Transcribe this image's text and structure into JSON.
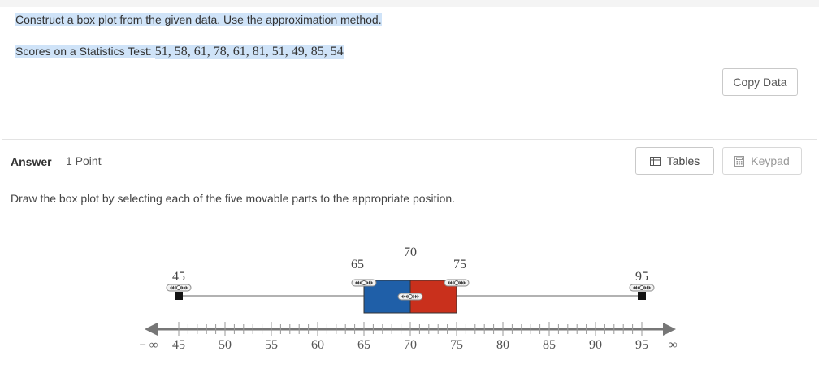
{
  "question": {
    "line1": "Construct a box plot from the given data. Use the approximation method.",
    "data_prefix": "Scores on a Statistics Test: ",
    "data_values": "51, 58, 61, 78, 61, 81, 51, 49, 85, 54",
    "copy_label": "Copy Data"
  },
  "answer": {
    "label": "Answer",
    "points": "1 Point",
    "tables_label": "Tables",
    "keypad_label": "Keypad",
    "instruction": "Draw the box plot by selecting each of the five movable parts to the appropriate position."
  },
  "box_plot": {
    "min": 45,
    "q1": 65,
    "median": 70,
    "q3": 75,
    "max": 95,
    "labels": {
      "min": "45",
      "q1": "65",
      "median": "70",
      "q3": "75",
      "max": "95"
    },
    "axis_min": 45,
    "axis_max": 95,
    "minor_tick_step": 1,
    "major_tick_step": 5,
    "tick_labels": [
      "45",
      "50",
      "55",
      "60",
      "65",
      "70",
      "75",
      "80",
      "85",
      "90",
      "95"
    ],
    "neg_inf_label": "− ∞",
    "pos_inf_label": "∞",
    "colors": {
      "left_box": "#1f5fa8",
      "right_box": "#c9301c",
      "axis": "#777777",
      "whisker": "#666666"
    }
  }
}
